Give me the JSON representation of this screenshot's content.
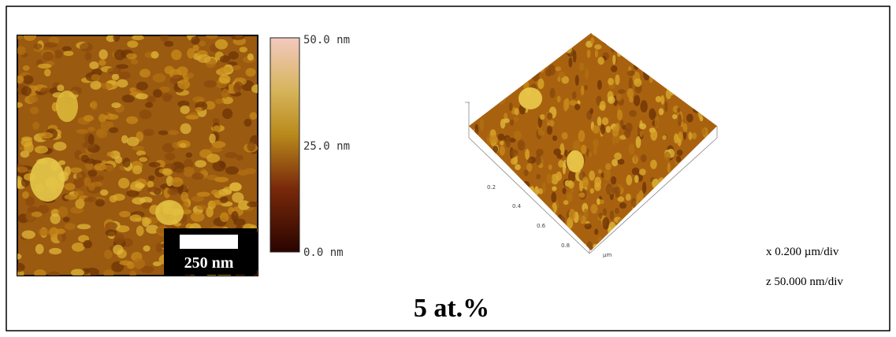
{
  "figure": {
    "scale_bar": "250 nm",
    "colorbar_labels": [
      "50.0 nm",
      "25.0 nm",
      "0.0 nm"
    ],
    "axis_labels": [
      "0.2",
      "0.4",
      "0.6",
      "0.8"
    ],
    "axis_unit": "µm",
    "x_scale": "x 0.200 µm/div",
    "z_scale": "z 50.000 nm/div",
    "caption": "5 at.%"
  }
}
